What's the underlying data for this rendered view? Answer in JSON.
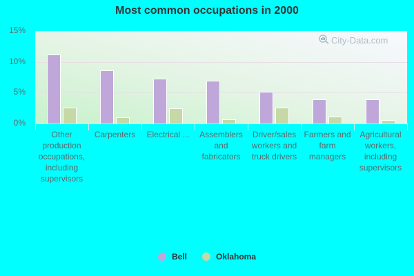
{
  "title": "Most common occupations in 2000",
  "watermark": "City-Data.com",
  "colors": {
    "bell": "#bfa8d9",
    "oklahoma": "#c5d8a6"
  },
  "y_ticks": [
    "15%",
    "10%",
    "5%",
    "0%"
  ],
  "legend": [
    {
      "name": "Bell",
      "color": "#bfa8d9"
    },
    {
      "name": "Oklahoma",
      "color": "#c5d8a6"
    }
  ],
  "chart_data": {
    "type": "bar",
    "title": "Most common occupations in 2000",
    "xlabel": "",
    "ylabel": "",
    "ylim": [
      0,
      15
    ],
    "y_ticks": [
      0,
      5,
      10,
      15
    ],
    "y_tick_labels": [
      "0%",
      "5%",
      "10%",
      "15%"
    ],
    "grid": true,
    "legend_position": "bottom",
    "categories": [
      "Other production occupations, including supervisors",
      "Carpenters",
      "Electrical ...",
      "Assemblers and fabricators",
      "Driver/sales workers and truck drivers",
      "Farmers and farm managers",
      "Agricultural workers, including supervisors"
    ],
    "series": [
      {
        "name": "Bell",
        "color": "#bfa8d9",
        "values": [
          11.2,
          8.6,
          7.3,
          6.9,
          5.2,
          3.9,
          3.9
        ]
      },
      {
        "name": "Oklahoma",
        "color": "#c5d8a6",
        "values": [
          2.6,
          1.0,
          2.5,
          0.7,
          2.6,
          1.1,
          0.6
        ]
      }
    ]
  }
}
